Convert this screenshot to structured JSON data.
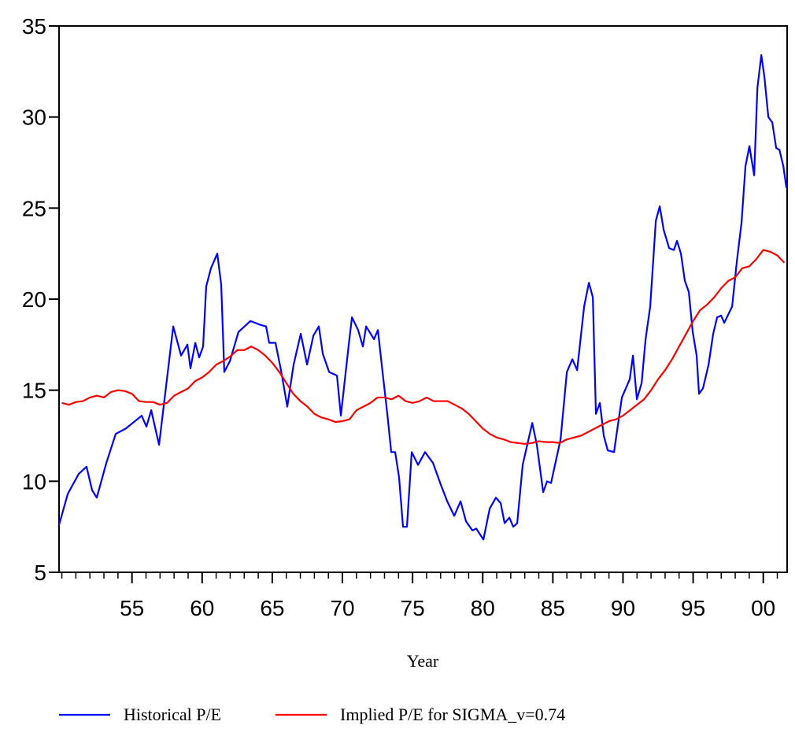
{
  "chart_data": {
    "type": "line",
    "xlabel": "Year",
    "xlim": [
      1949.8,
      2001.7
    ],
    "ylim": [
      5,
      35
    ],
    "yticks": [
      5,
      10,
      15,
      20,
      25,
      30,
      35
    ],
    "xticks": [
      {
        "value": 1955,
        "label": "55"
      },
      {
        "value": 1960,
        "label": "60"
      },
      {
        "value": 1965,
        "label": "65"
      },
      {
        "value": 1970,
        "label": "70"
      },
      {
        "value": 1975,
        "label": "75"
      },
      {
        "value": 1980,
        "label": "80"
      },
      {
        "value": 1985,
        "label": "85"
      },
      {
        "value": 1990,
        "label": "90"
      },
      {
        "value": 1995,
        "label": "95"
      },
      {
        "value": 2000,
        "label": "00"
      }
    ],
    "grid": false,
    "legend": "bottom",
    "series": [
      {
        "name": "Historical P/E",
        "color": "#0000ff",
        "x": [
          1949.8,
          1950.42,
          1951.2,
          1951.76,
          1952.16,
          1952.49,
          1953.17,
          1953.84,
          1954.57,
          1955.69,
          1956.03,
          1956.37,
          1956.93,
          1957.94,
          1958.5,
          1958.95,
          1959.17,
          1959.51,
          1959.79,
          1960.07,
          1960.29,
          1960.63,
          1961.08,
          1961.36,
          1961.58,
          1961.98,
          1962.59,
          1963.44,
          1964.11,
          1964.56,
          1964.78,
          1965.23,
          1965.62,
          1966.07,
          1966.52,
          1967.03,
          1967.48,
          1967.93,
          1968.32,
          1968.6,
          1969.05,
          1969.61,
          1969.89,
          1970.45,
          1970.68,
          1971.12,
          1971.46,
          1971.69,
          1972.25,
          1972.53,
          1972.86,
          1973.2,
          1973.48,
          1973.76,
          1974.04,
          1974.32,
          1974.6,
          1974.94,
          1975.39,
          1975.89,
          1976.46,
          1977.02,
          1977.47,
          1977.97,
          1978.42,
          1978.81,
          1979.26,
          1979.54,
          1980.05,
          1980.5,
          1980.94,
          1981.28,
          1981.56,
          1981.9,
          1982.18,
          1982.46,
          1982.85,
          1983.53,
          1983.86,
          1984.31,
          1984.59,
          1984.87,
          1985.55,
          1986.0,
          1986.39,
          1986.73,
          1987.23,
          1987.57,
          1987.85,
          1988.07,
          1988.35,
          1988.63,
          1988.91,
          1989.36,
          1989.92,
          1990.48,
          1990.71,
          1990.99,
          1991.33,
          1991.61,
          1991.94,
          1992.34,
          1992.62,
          1992.9,
          1993.29,
          1993.63,
          1993.85,
          1994.13,
          1994.41,
          1994.69,
          1994.97,
          1995.25,
          1995.42,
          1995.7,
          1996.1,
          1996.43,
          1996.71,
          1996.99,
          1997.22,
          1997.78,
          1998.12,
          1998.45,
          1998.73,
          1999.01,
          1999.35,
          1999.58,
          1999.86,
          2000.08,
          2000.36,
          2000.64,
          2000.92,
          2001.15,
          2001.43,
          2001.65
        ],
        "values": [
          7.6,
          9.3,
          10.4,
          10.8,
          9.5,
          9.1,
          11.0,
          12.6,
          12.9,
          13.6,
          13.0,
          13.9,
          12.0,
          18.5,
          16.9,
          17.5,
          16.2,
          17.6,
          16.8,
          17.4,
          20.7,
          21.7,
          22.5,
          20.8,
          16.0,
          16.6,
          18.2,
          18.8,
          18.6,
          18.5,
          17.6,
          17.6,
          16.1,
          14.1,
          16.4,
          18.1,
          16.4,
          18.0,
          18.5,
          17.0,
          16.0,
          15.8,
          13.6,
          17.5,
          19.0,
          18.3,
          17.4,
          18.5,
          17.8,
          18.3,
          16.0,
          13.7,
          11.6,
          11.6,
          10.2,
          7.5,
          7.5,
          11.6,
          10.9,
          11.6,
          11.0,
          9.8,
          8.9,
          8.1,
          8.9,
          7.8,
          7.3,
          7.4,
          6.8,
          8.5,
          9.1,
          8.8,
          7.7,
          8.0,
          7.5,
          7.7,
          10.9,
          13.2,
          12.0,
          9.4,
          10.0,
          9.9,
          12.3,
          16.0,
          16.7,
          16.1,
          19.6,
          20.9,
          20.1,
          13.7,
          14.3,
          12.5,
          11.7,
          11.6,
          14.6,
          15.6,
          16.9,
          14.5,
          15.4,
          17.8,
          19.6,
          24.3,
          25.1,
          23.8,
          22.8,
          22.7,
          23.2,
          22.5,
          21.0,
          20.4,
          18.2,
          16.9,
          14.8,
          15.1,
          16.4,
          18.1,
          19.0,
          19.1,
          18.7,
          19.6,
          22.1,
          24.2,
          27.3,
          28.4,
          26.8,
          31.6,
          33.4,
          32.2,
          30.0,
          29.7,
          28.3,
          28.2,
          27.3,
          26.1
        ]
      },
      {
        "name": "Implied P/E for SIGMA_v=0.74",
        "color": "#ff0000",
        "x": [
          1950.0,
          1950.5,
          1951.0,
          1951.5,
          1952.0,
          1952.5,
          1953.0,
          1953.5,
          1954.0,
          1954.5,
          1955.0,
          1955.5,
          1956.0,
          1956.5,
          1957.0,
          1957.5,
          1958.0,
          1958.5,
          1959.0,
          1959.5,
          1960.0,
          1960.5,
          1961.0,
          1961.5,
          1962.0,
          1962.5,
          1963.0,
          1963.5,
          1964.0,
          1964.5,
          1965.0,
          1965.5,
          1966.0,
          1966.5,
          1967.0,
          1967.5,
          1968.0,
          1968.5,
          1969.0,
          1969.5,
          1970.0,
          1970.5,
          1971.0,
          1971.5,
          1972.0,
          1972.5,
          1973.0,
          1973.5,
          1974.0,
          1974.5,
          1975.0,
          1975.5,
          1976.0,
          1976.5,
          1977.0,
          1977.5,
          1978.0,
          1978.5,
          1979.0,
          1979.5,
          1980.0,
          1980.5,
          1981.0,
          1981.5,
          1982.0,
          1982.5,
          1983.0,
          1983.5,
          1984.0,
          1984.5,
          1985.0,
          1985.5,
          1986.0,
          1986.5,
          1987.0,
          1987.5,
          1988.0,
          1988.5,
          1989.0,
          1989.5,
          1990.0,
          1990.5,
          1991.0,
          1991.5,
          1992.0,
          1992.5,
          1993.0,
          1993.5,
          1994.0,
          1994.5,
          1995.0,
          1995.5,
          1996.0,
          1996.5,
          1997.0,
          1997.5,
          1998.0,
          1998.5,
          1999.0,
          1999.5,
          2000.0,
          2000.5,
          2001.0,
          2001.5
        ],
        "values": [
          14.3,
          14.2,
          14.35,
          14.4,
          14.6,
          14.7,
          14.6,
          14.9,
          15.0,
          14.95,
          14.8,
          14.4,
          14.35,
          14.35,
          14.2,
          14.3,
          14.7,
          14.9,
          15.1,
          15.5,
          15.7,
          16.0,
          16.4,
          16.6,
          16.85,
          17.2,
          17.2,
          17.4,
          17.2,
          16.9,
          16.5,
          16.0,
          15.4,
          14.8,
          14.4,
          14.1,
          13.7,
          13.5,
          13.4,
          13.25,
          13.3,
          13.4,
          13.9,
          14.1,
          14.3,
          14.6,
          14.6,
          14.5,
          14.7,
          14.4,
          14.3,
          14.4,
          14.6,
          14.4,
          14.4,
          14.4,
          14.2,
          14.0,
          13.7,
          13.3,
          12.9,
          12.6,
          12.4,
          12.3,
          12.15,
          12.1,
          12.05,
          12.1,
          12.2,
          12.15,
          12.15,
          12.1,
          12.3,
          12.4,
          12.5,
          12.7,
          12.9,
          13.1,
          13.3,
          13.4,
          13.6,
          13.9,
          14.2,
          14.5,
          15.0,
          15.6,
          16.1,
          16.7,
          17.4,
          18.1,
          18.8,
          19.4,
          19.7,
          20.1,
          20.6,
          21.0,
          21.2,
          21.7,
          21.8,
          22.2,
          22.7,
          22.6,
          22.4,
          22.0
        ]
      }
    ]
  }
}
